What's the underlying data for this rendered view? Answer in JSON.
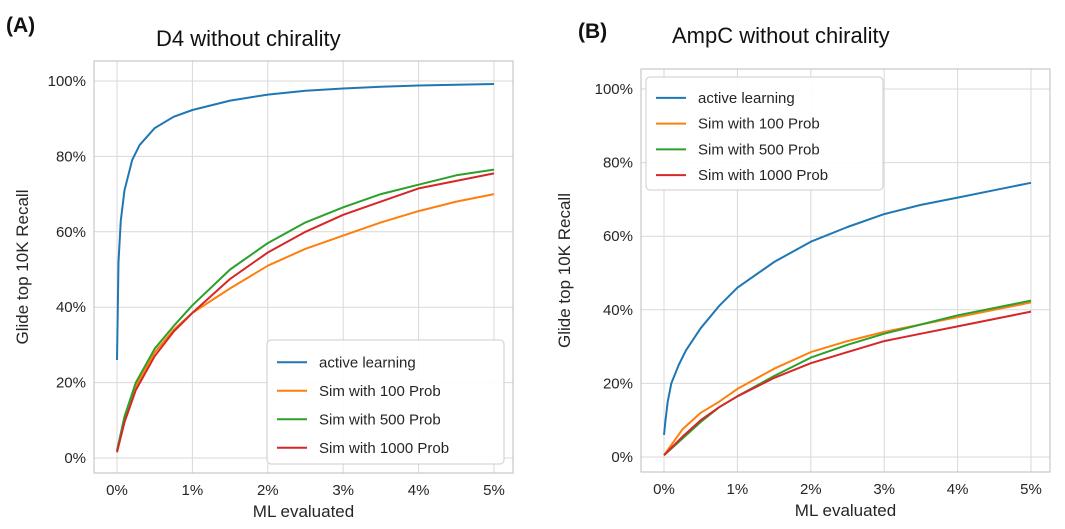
{
  "chart_data": [
    {
      "type": "line",
      "panel": "(A)",
      "title": "D4 without chirality",
      "xlabel": "ML evaluated",
      "ylabel": "Glide top 10K Recall",
      "xlim": [
        0,
        5
      ],
      "ylim": [
        0,
        100
      ],
      "xticks": [
        "0%",
        "1%",
        "2%",
        "3%",
        "4%",
        "5%"
      ],
      "yticks": [
        "0%",
        "20%",
        "40%",
        "60%",
        "80%",
        "100%"
      ],
      "grid": true,
      "legend_position": "lower-right",
      "series": [
        {
          "name": "active learning",
          "color": "#1f77b4",
          "x": [
            0,
            0.02,
            0.05,
            0.1,
            0.2,
            0.3,
            0.5,
            0.75,
            1.0,
            1.5,
            2.0,
            2.5,
            3.0,
            3.5,
            4.0,
            4.5,
            5.0
          ],
          "y": [
            26,
            52,
            63,
            71,
            79,
            83,
            87.5,
            90.5,
            92.3,
            94.8,
            96.4,
            97.4,
            98.0,
            98.5,
            98.8,
            99.0,
            99.2
          ]
        },
        {
          "name": "Sim with 100 Prob",
          "color": "#ff7f0e",
          "x": [
            0,
            0.1,
            0.25,
            0.5,
            0.75,
            1.0,
            1.5,
            2.0,
            2.5,
            3.0,
            3.5,
            4.0,
            4.5,
            5.0
          ],
          "y": [
            2,
            10,
            19,
            28,
            34,
            38.5,
            45,
            51,
            55.5,
            59,
            62.5,
            65.5,
            68,
            70
          ]
        },
        {
          "name": "Sim with 500 Prob",
          "color": "#2ca02c",
          "x": [
            0,
            0.1,
            0.25,
            0.5,
            0.75,
            1.0,
            1.5,
            2.0,
            2.5,
            3.0,
            3.5,
            4.0,
            4.5,
            5.0
          ],
          "y": [
            2,
            11,
            20,
            29,
            35,
            40.5,
            50,
            57,
            62.5,
            66.5,
            70,
            72.5,
            75,
            76.5
          ]
        },
        {
          "name": "Sim with 1000 Prob",
          "color": "#d62728",
          "x": [
            0,
            0.1,
            0.25,
            0.5,
            0.75,
            1.0,
            1.5,
            2.0,
            2.5,
            3.0,
            3.5,
            4.0,
            4.5,
            5.0
          ],
          "y": [
            1.5,
            9.5,
            18,
            27,
            33.5,
            38.5,
            47.5,
            54.5,
            60,
            64.5,
            68,
            71.5,
            73.5,
            75.5
          ]
        }
      ]
    },
    {
      "type": "line",
      "panel": "(B)",
      "title": "AmpC without chirality",
      "xlabel": "ML evaluated",
      "ylabel": "Glide top 10K Recall",
      "xlim": [
        0,
        5
      ],
      "ylim": [
        0,
        100
      ],
      "xticks": [
        "0%",
        "1%",
        "2%",
        "3%",
        "4%",
        "5%"
      ],
      "yticks": [
        "0%",
        "20%",
        "40%",
        "60%",
        "80%",
        "100%"
      ],
      "grid": true,
      "legend_position": "upper-left",
      "series": [
        {
          "name": "active learning",
          "color": "#1f77b4",
          "x": [
            0,
            0.02,
            0.05,
            0.1,
            0.2,
            0.3,
            0.5,
            0.75,
            1.0,
            1.5,
            2.0,
            2.5,
            3.0,
            3.5,
            4.0,
            4.5,
            5.0
          ],
          "y": [
            6,
            10,
            15,
            20,
            25,
            29,
            35,
            41,
            46,
            53,
            58.5,
            62.5,
            66,
            68.5,
            70.5,
            72.5,
            74.5
          ]
        },
        {
          "name": "Sim with 100 Prob",
          "color": "#ff7f0e",
          "x": [
            0,
            0.25,
            0.5,
            0.75,
            1.0,
            1.5,
            2.0,
            2.5,
            3.0,
            3.5,
            4.0,
            4.5,
            5.0
          ],
          "y": [
            0.5,
            7.5,
            12,
            15,
            18.5,
            24,
            28.5,
            31.5,
            34,
            36,
            38,
            40,
            42
          ]
        },
        {
          "name": "Sim with 500 Prob",
          "color": "#2ca02c",
          "x": [
            0,
            0.25,
            0.5,
            0.75,
            1.0,
            1.5,
            2.0,
            2.5,
            3.0,
            3.5,
            4.0,
            4.5,
            5.0
          ],
          "y": [
            0.5,
            5,
            9.5,
            13.5,
            16.5,
            22,
            27,
            30.5,
            33.5,
            36,
            38.5,
            40.5,
            42.5
          ]
        },
        {
          "name": "Sim with 1000 Prob",
          "color": "#d62728",
          "x": [
            0,
            0.25,
            0.5,
            0.75,
            1.0,
            1.5,
            2.0,
            2.5,
            3.0,
            3.5,
            4.0,
            4.5,
            5.0
          ],
          "y": [
            0.5,
            5.5,
            10,
            13.5,
            16.5,
            21.5,
            25.5,
            28.5,
            31.5,
            33.5,
            35.5,
            37.5,
            39.5
          ]
        }
      ]
    }
  ]
}
